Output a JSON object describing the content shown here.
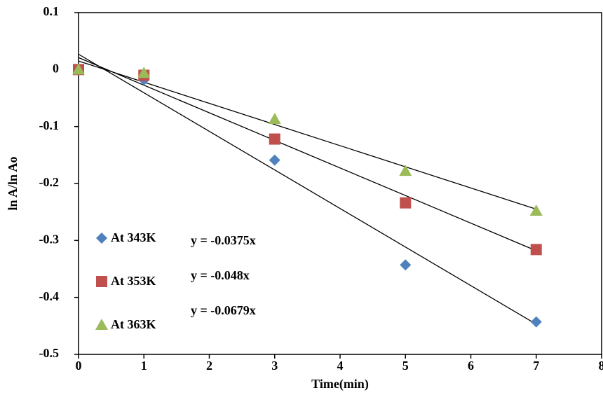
{
  "chart_data": {
    "type": "scatter",
    "x_label": "Time(min)",
    "y_label": "ln A/ln Ao",
    "xlim": [
      0,
      8
    ],
    "xticks": [
      0,
      1,
      2,
      3,
      4,
      5,
      6,
      7,
      8
    ],
    "ylim": [
      -0.5,
      0.1
    ],
    "yticks": [
      0.1,
      0,
      -0.1,
      -0.2,
      -0.3,
      -0.4,
      -0.5
    ],
    "grid": false,
    "legend": "lower left",
    "series": [
      {
        "name": "At 343K",
        "color": "#4f81bd",
        "marker": "diamond",
        "x": [
          0,
          1,
          3,
          5,
          7
        ],
        "values": [
          0,
          -0.018,
          -0.159,
          -0.343,
          -0.443
        ],
        "trendline": {
          "x": [
            0,
            7
          ],
          "values": [
            0.027,
            -0.447
          ]
        }
      },
      {
        "name": "At 353K",
        "color": "#c0504d",
        "marker": "square",
        "x": [
          0,
          1,
          3,
          5,
          7
        ],
        "values": [
          0,
          -0.01,
          -0.122,
          -0.234,
          -0.316
        ],
        "trendline": {
          "x": [
            0,
            7
          ],
          "values": [
            0.021,
            -0.318
          ]
        }
      },
      {
        "name": "At 363K",
        "color": "#9bbb59",
        "marker": "triangle",
        "x": [
          0,
          1,
          3,
          5,
          7
        ],
        "values": [
          0,
          -0.006,
          -0.087,
          -0.178,
          -0.248
        ],
        "trendline": {
          "x": [
            0,
            7
          ],
          "values": [
            0.015,
            -0.245
          ]
        }
      }
    ],
    "annotations": [
      "y = -0.0375x",
      "y = -0.048x",
      "y = -0.0679x"
    ]
  }
}
